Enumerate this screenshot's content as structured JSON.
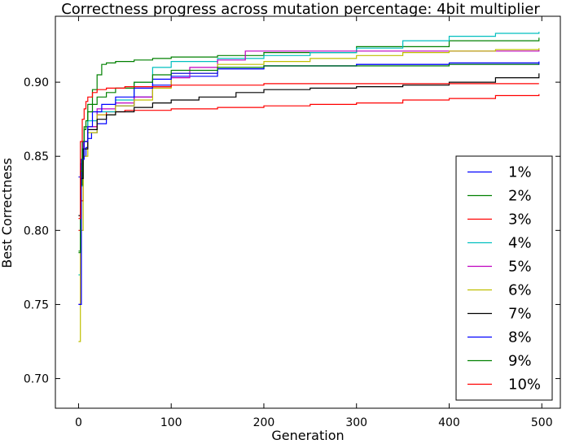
{
  "chart_data": {
    "type": "line",
    "title": "Correctness progress across mutation percentage: 4bit multiplier",
    "xlabel": "Generation",
    "ylabel": "Best Correctness",
    "xlim": [
      -25,
      520
    ],
    "ylim": [
      0.68,
      0.9445
    ],
    "xticks": [
      0,
      100,
      200,
      300,
      400,
      500
    ],
    "yticks": [
      0.7,
      0.75,
      0.8,
      0.85,
      0.9
    ],
    "grid": false,
    "legend_position": "lower-right",
    "series": [
      {
        "name": "1%",
        "color": "#0000ff",
        "x": [
          0,
          2,
          5,
          8,
          10,
          14,
          20,
          30,
          40,
          60,
          80,
          100,
          150,
          200,
          300,
          400,
          497
        ],
        "y": [
          0.836,
          0.845,
          0.85,
          0.856,
          0.862,
          0.866,
          0.872,
          0.878,
          0.884,
          0.89,
          0.898,
          0.904,
          0.909,
          0.911,
          0.912,
          0.913,
          0.914
        ]
      },
      {
        "name": "2%",
        "color": "#008000",
        "x": [
          0,
          2,
          4,
          6,
          10,
          15,
          20,
          25,
          30,
          40,
          60,
          80,
          100,
          150,
          200,
          300,
          400,
          497
        ],
        "y": [
          0.786,
          0.83,
          0.855,
          0.87,
          0.885,
          0.895,
          0.905,
          0.912,
          0.913,
          0.914,
          0.915,
          0.916,
          0.917,
          0.918,
          0.92,
          0.924,
          0.928,
          0.93
        ]
      },
      {
        "name": "3%",
        "color": "#ff0000",
        "x": [
          0,
          2,
          5,
          10,
          20,
          30,
          50,
          100,
          150,
          200,
          250,
          300,
          350,
          400,
          450,
          497
        ],
        "y": [
          0.8,
          0.82,
          0.86,
          0.87,
          0.878,
          0.88,
          0.881,
          0.882,
          0.883,
          0.884,
          0.885,
          0.886,
          0.888,
          0.889,
          0.891,
          0.892
        ]
      },
      {
        "name": "4%",
        "color": "#00bfbf",
        "x": [
          0,
          2,
          5,
          10,
          20,
          40,
          60,
          80,
          100,
          150,
          200,
          250,
          300,
          350,
          400,
          450,
          497
        ],
        "y": [
          0.77,
          0.83,
          0.86,
          0.874,
          0.88,
          0.888,
          0.9,
          0.91,
          0.914,
          0.916,
          0.918,
          0.92,
          0.923,
          0.928,
          0.931,
          0.933,
          0.934
        ]
      },
      {
        "name": "5%",
        "color": "#bf00bf",
        "x": [
          0,
          2,
          5,
          10,
          20,
          40,
          60,
          80,
          100,
          120,
          150,
          180,
          250,
          350,
          450,
          497
        ],
        "y": [
          0.75,
          0.84,
          0.86,
          0.87,
          0.882,
          0.886,
          0.89,
          0.897,
          0.903,
          0.91,
          0.915,
          0.921,
          0.921,
          0.921,
          0.921,
          0.922
        ]
      },
      {
        "name": "6%",
        "color": "#bfbf00",
        "x": [
          0,
          2,
          5,
          10,
          20,
          40,
          60,
          80,
          100,
          150,
          200,
          250,
          300,
          350,
          400,
          450,
          497
        ],
        "y": [
          0.725,
          0.8,
          0.85,
          0.866,
          0.878,
          0.884,
          0.888,
          0.896,
          0.906,
          0.912,
          0.914,
          0.916,
          0.918,
          0.92,
          0.921,
          0.922,
          0.923
        ]
      },
      {
        "name": "7%",
        "color": "#000000",
        "x": [
          0,
          2,
          5,
          10,
          20,
          30,
          40,
          60,
          80,
          100,
          130,
          170,
          200,
          250,
          300,
          350,
          400,
          450,
          497
        ],
        "y": [
          0.81,
          0.835,
          0.855,
          0.868,
          0.875,
          0.878,
          0.88,
          0.883,
          0.886,
          0.888,
          0.89,
          0.893,
          0.895,
          0.896,
          0.897,
          0.898,
          0.9,
          0.903,
          0.906
        ]
      },
      {
        "name": "8%",
        "color": "#0000ff",
        "x": [
          0,
          3,
          6,
          10,
          15,
          25,
          40,
          60,
          80,
          100,
          150,
          200,
          300,
          400,
          497
        ],
        "y": [
          0.75,
          0.848,
          0.86,
          0.87,
          0.88,
          0.885,
          0.89,
          0.896,
          0.902,
          0.906,
          0.909,
          0.911,
          0.912,
          0.912,
          0.913
        ]
      },
      {
        "name": "9%",
        "color": "#008000",
        "x": [
          0,
          2,
          4,
          6,
          8,
          10,
          15,
          20,
          30,
          40,
          60,
          80,
          100,
          150,
          200,
          300,
          400,
          497
        ],
        "y": [
          0.785,
          0.84,
          0.86,
          0.868,
          0.874,
          0.88,
          0.885,
          0.89,
          0.893,
          0.896,
          0.9,
          0.905,
          0.908,
          0.91,
          0.911,
          0.911,
          0.912,
          0.912
        ]
      },
      {
        "name": "10%",
        "color": "#ff0000",
        "x": [
          0,
          2,
          4,
          6,
          8,
          10,
          15,
          20,
          30,
          50,
          100,
          200,
          300,
          400,
          497
        ],
        "y": [
          0.808,
          0.86,
          0.875,
          0.882,
          0.887,
          0.89,
          0.893,
          0.895,
          0.896,
          0.897,
          0.898,
          0.899,
          0.899,
          0.899,
          0.899
        ]
      }
    ]
  }
}
